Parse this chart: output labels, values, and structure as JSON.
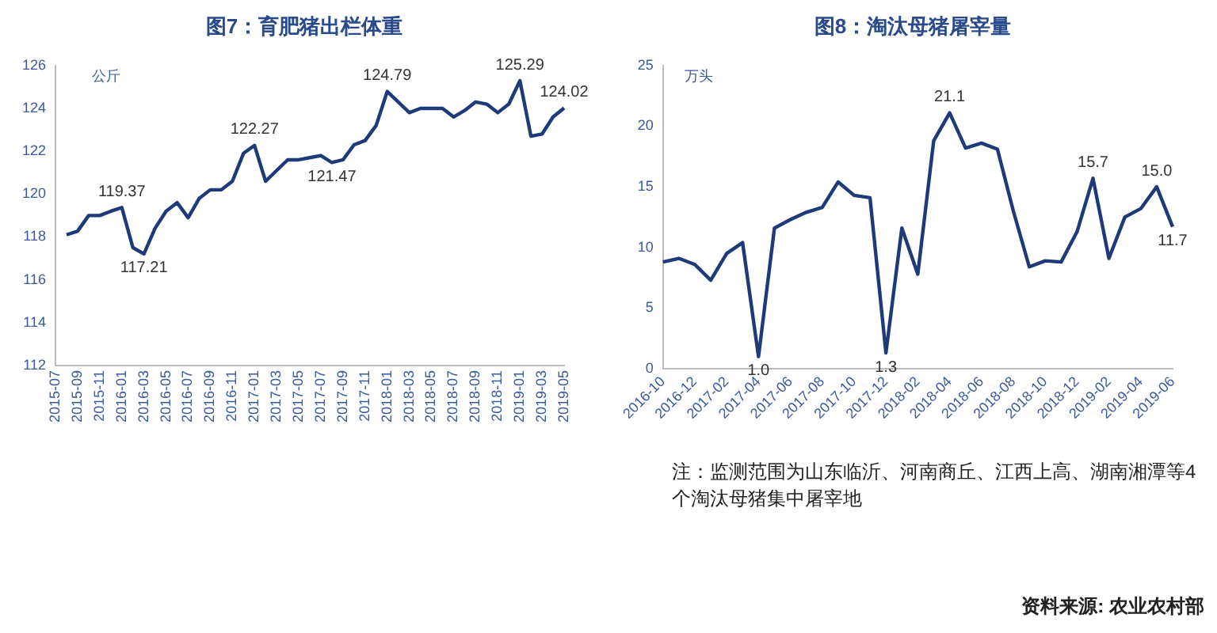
{
  "chart_data": [
    {
      "type": "line",
      "title": "图7：育肥猪出栏体重",
      "ylabel": "公斤",
      "categories": [
        "2015-07",
        null,
        "2015-09",
        null,
        "2015-11",
        null,
        "2016-01",
        null,
        "2016-03",
        null,
        "2016-05",
        null,
        "2016-07",
        null,
        "2016-09",
        null,
        "2016-11",
        null,
        "2017-01",
        null,
        "2017-03",
        null,
        "2017-05",
        null,
        "2017-07",
        null,
        "2017-09",
        null,
        "2017-11",
        null,
        "2018-01",
        null,
        "2018-03",
        null,
        "2018-05",
        null,
        "2018-07",
        null,
        "2018-09",
        null,
        "2018-11",
        null,
        "2019-01",
        null,
        "2019-03",
        null,
        "2019-05"
      ],
      "series": [
        {
          "color": "#1f3a78",
          "values": [
            null,
            118.1,
            118.27,
            119.0,
            119.0,
            119.2,
            119.37,
            117.5,
            117.21,
            118.4,
            119.2,
            119.6,
            118.9,
            119.8,
            120.2,
            120.2,
            120.6,
            121.9,
            122.27,
            120.6,
            121.1,
            121.6,
            121.6,
            121.7,
            121.8,
            121.47,
            121.6,
            122.3,
            122.5,
            123.2,
            124.79,
            124.3,
            123.8,
            124.0,
            124.0,
            124.0,
            123.6,
            123.9,
            124.3,
            124.2,
            123.8,
            124.2,
            125.29,
            122.7,
            122.8,
            123.6,
            124.02
          ]
        }
      ],
      "ylim": [
        112,
        126
      ],
      "yticks": [
        112,
        114,
        116,
        118,
        120,
        122,
        124,
        126
      ],
      "grid": false,
      "legend": false,
      "annotations": [
        {
          "text": "119.37",
          "x": "2016-01",
          "y": 119.37
        },
        {
          "text": "117.21",
          "x": "2016-03",
          "y": 117.21
        },
        {
          "text": "122.27",
          "x": "2017-01",
          "y": 122.27
        },
        {
          "text": "121.47",
          "y": 121.47
        },
        {
          "text": "124.79",
          "x": "2018-01",
          "y": 124.79
        },
        {
          "text": "125.29",
          "x": "2019-01",
          "y": 125.29
        },
        {
          "text": "124.02",
          "x": "2019-05",
          "y": 124.02
        }
      ]
    },
    {
      "type": "line",
      "title": "图8：淘汰母猪屠宰量",
      "ylabel": "万头",
      "categories": [
        "2016-10",
        null,
        "2016-12",
        null,
        "2017-02",
        null,
        "2017-04",
        null,
        "2017-06",
        null,
        "2017-08",
        null,
        "2017-10",
        null,
        "2017-12",
        null,
        "2018-02",
        null,
        "2018-04",
        null,
        "2018-06",
        null,
        "2018-08",
        null,
        "2018-10",
        null,
        "2018-12",
        null,
        "2019-02",
        null,
        "2019-04",
        null,
        "2019-06"
      ],
      "series": [
        {
          "color": "#1f3a78",
          "values": [
            8.8,
            9.1,
            8.6,
            7.3,
            9.5,
            10.4,
            1.0,
            11.6,
            12.3,
            12.9,
            13.3,
            15.4,
            14.3,
            14.1,
            1.3,
            11.6,
            7.8,
            18.8,
            21.1,
            18.2,
            18.6,
            18.1,
            13.0,
            8.4,
            8.9,
            8.8,
            11.3,
            15.7,
            9.1,
            12.5,
            13.2,
            15.0,
            11.7
          ]
        }
      ],
      "ylim": [
        0,
        25
      ],
      "yticks": [
        0,
        5,
        10,
        15,
        20,
        25
      ],
      "grid": false,
      "legend": false,
      "annotations": [
        {
          "text": "1.0",
          "x": "2017-04",
          "y": 1.0
        },
        {
          "text": "1.3",
          "x": "2017-12",
          "y": 1.3
        },
        {
          "text": "21.1",
          "x": "2018-04",
          "y": 21.1
        },
        {
          "text": "15.7",
          "y": 15.7
        },
        {
          "text": "15.0",
          "y": 15.0
        },
        {
          "text": "11.7",
          "x": "2019-06",
          "y": 11.7
        },
        "注：监测范围为山东临沂、河南商丘、江西上高、湖南湘潭等4个淘汰母猪集中屠宰地",
        "资料来源: 农业农村部"
      ]
    }
  ]
}
